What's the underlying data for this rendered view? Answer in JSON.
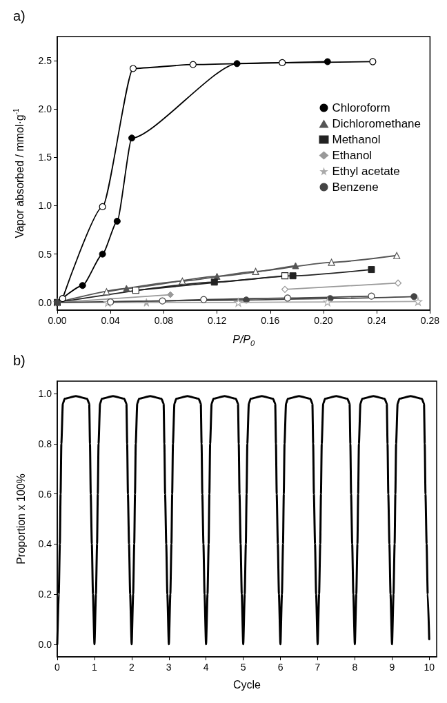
{
  "chart_data": [
    {
      "type": "line",
      "title": "a)",
      "xlabel": "P/P$_{0}$",
      "ylabel": "Vapor absorbed / mmol·g$^{-1}$",
      "xlim": [
        0,
        0.28
      ],
      "ylim": [
        -0.08,
        2.75
      ],
      "xticks": [
        {
          "value": 0,
          "label": "0.00"
        },
        {
          "value": 0.04,
          "label": "0.04"
        },
        {
          "value": 0.08,
          "label": "0.08"
        },
        {
          "value": 0.12,
          "label": "0.12"
        },
        {
          "value": 0.16,
          "label": "0.16"
        },
        {
          "value": 0.2,
          "label": "0.20"
        },
        {
          "value": 0.24,
          "label": "0.24"
        },
        {
          "value": 0.28,
          "label": "0.28"
        }
      ],
      "yticks": [
        {
          "value": 0,
          "label": "0.0"
        },
        {
          "value": 0.5,
          "label": "0.5"
        },
        {
          "value": 1,
          "label": "1.0"
        },
        {
          "value": 1.5,
          "label": "1.5"
        },
        {
          "value": 2,
          "label": "2.0"
        },
        {
          "value": 2.5,
          "label": "2.5"
        }
      ],
      "grid": false,
      "legend": "right",
      "series": [
        {
          "name": "Chloroform",
          "color": "#000000",
          "marker": "circle",
          "x": [
            0,
            0.019,
            0.034,
            0.045,
            0.056,
            0.135,
            0.203
          ],
          "values": [
            0,
            0.175,
            0.5,
            0.84,
            1.7,
            2.47,
            2.49
          ]
        },
        {
          "name": "Dichloromethane",
          "color": "#555555",
          "marker": "triangle",
          "x": [
            0,
            0.052,
            0.12,
            0.179
          ],
          "values": [
            0,
            0.145,
            0.27,
            0.38
          ]
        },
        {
          "name": "Methanol",
          "color": "#222222",
          "marker": "square",
          "x": [
            0,
            0.118,
            0.177,
            0.236
          ],
          "values": [
            0,
            0.21,
            0.275,
            0.34
          ]
        },
        {
          "name": "Ethanol",
          "color": "#999999",
          "marker": "diamond",
          "x": [
            0,
            0.085
          ],
          "values": [
            0,
            0.08
          ]
        },
        {
          "name": "Ethyl acetate",
          "color": "#aaaaaa",
          "marker": "star",
          "x": [
            0,
            0.067
          ],
          "values": [
            0,
            0
          ]
        },
        {
          "name": "Benzene",
          "color": "#444444",
          "marker": "circle",
          "x": [
            0,
            0.142,
            0.205,
            0.268
          ],
          "values": [
            0,
            0.025,
            0.04,
            0.06
          ]
        },
        {
          "color": "#000000",
          "marker": "circle",
          "x": [
            0.004,
            0.034,
            0.057,
            0.102,
            0.169,
            0.237
          ],
          "values": [
            0.04,
            0.99,
            2.42,
            2.46,
            2.48,
            2.49
          ]
        },
        {
          "color": "#555555",
          "marker": "triangle",
          "x": [
            0.037,
            0.094,
            0.149,
            0.206,
            0.255
          ],
          "values": [
            0.11,
            0.22,
            0.32,
            0.415,
            0.485
          ]
        },
        {
          "color": "#222222",
          "marker": "square",
          "x": [
            0.059,
            0.171
          ],
          "values": [
            0.125,
            0.275
          ]
        },
        {
          "color": "#999999",
          "marker": "diamond",
          "x": [
            0.171,
            0.256
          ],
          "values": [
            0.135,
            0.2
          ]
        },
        {
          "color": "#aaaaaa",
          "marker": "star",
          "x": [
            0.038,
            0.136,
            0.203,
            0.271
          ],
          "values": [
            0,
            0,
            0.005,
            0.01
          ]
        },
        {
          "color": "#444444",
          "marker": "circle",
          "x": [
            0.04,
            0.079,
            0.11,
            0.173,
            0.236
          ],
          "values": [
            0.005,
            0.015,
            0.03,
            0.045,
            0.065
          ]
        }
      ]
    },
    {
      "type": "line",
      "title": "b)",
      "xlabel": "Cycle",
      "ylabel": "Proportion x 100%",
      "xlim": [
        0,
        10.2
      ],
      "ylim": [
        -0.05,
        1.05
      ],
      "xticks": [
        0,
        1,
        2,
        3,
        4,
        5,
        6,
        7,
        8,
        9,
        10
      ],
      "yticks": [
        {
          "value": 0,
          "label": "0.0"
        },
        {
          "value": 0.2,
          "label": "0.2"
        },
        {
          "value": 0.4,
          "label": "0.4"
        },
        {
          "value": 0.6,
          "label": "0.6"
        },
        {
          "value": 0.8,
          "label": "0.8"
        },
        {
          "value": 1,
          "label": "1.0"
        }
      ],
      "grid": false,
      "legend": false,
      "marker": "none",
      "series": [
        {
          "color": "#000000",
          "x": [
            0,
            0.04,
            0.07,
            0.09,
            0.11,
            0.15,
            0.2,
            0.5,
            0.8,
            0.86,
            0.88,
            0.9,
            0.93,
            0.96,
            1,
            1.04,
            1.07,
            1.09,
            1.11,
            1.15,
            1.2,
            1.5,
            1.8,
            1.86,
            1.88,
            1.9,
            1.93,
            1.96,
            2,
            2.04,
            2.07,
            2.09,
            2.11,
            2.15,
            2.2,
            2.5,
            2.8,
            2.86,
            2.88,
            2.9,
            2.93,
            2.96,
            3,
            3.04,
            3.07,
            3.09,
            3.11,
            3.15,
            3.2,
            3.5,
            3.8,
            3.86,
            3.88,
            3.9,
            3.93,
            3.96,
            4,
            4.04,
            4.07,
            4.09,
            4.11,
            4.15,
            4.2,
            4.5,
            4.8,
            4.86,
            4.88,
            4.9,
            4.93,
            4.96,
            5,
            5.04,
            5.07,
            5.09,
            5.11,
            5.15,
            5.2,
            5.5,
            5.8,
            5.86,
            5.88,
            5.9,
            5.93,
            5.96,
            6,
            6.04,
            6.07,
            6.09,
            6.11,
            6.15,
            6.2,
            6.5,
            6.8,
            6.86,
            6.88,
            6.9,
            6.93,
            6.96,
            7,
            7.04,
            7.07,
            7.09,
            7.11,
            7.15,
            7.2,
            7.5,
            7.8,
            7.86,
            7.88,
            7.9,
            7.93,
            7.96,
            8,
            8.04,
            8.07,
            8.09,
            8.11,
            8.15,
            8.2,
            8.5,
            8.8,
            8.86,
            8.88,
            8.9,
            8.93,
            8.96,
            9,
            9.04,
            9.07,
            9.09,
            9.11,
            9.15,
            9.2,
            9.5,
            9.8,
            9.86,
            9.88,
            9.9,
            9.93,
            9.96,
            10
          ],
          "values": [
            0,
            0.2,
            0.4,
            0.6,
            0.8,
            0.96,
            0.98,
            0.99,
            0.98,
            0.96,
            0.8,
            0.6,
            0.4,
            0.2,
            0,
            0.2,
            0.4,
            0.6,
            0.8,
            0.96,
            0.98,
            0.99,
            0.98,
            0.96,
            0.8,
            0.6,
            0.4,
            0.2,
            0,
            0.2,
            0.4,
            0.6,
            0.8,
            0.96,
            0.98,
            0.99,
            0.98,
            0.96,
            0.8,
            0.6,
            0.4,
            0.2,
            0,
            0.2,
            0.4,
            0.6,
            0.8,
            0.96,
            0.98,
            0.99,
            0.98,
            0.96,
            0.8,
            0.6,
            0.4,
            0.2,
            0,
            0.2,
            0.4,
            0.6,
            0.8,
            0.96,
            0.98,
            0.99,
            0.98,
            0.96,
            0.8,
            0.6,
            0.4,
            0.2,
            0,
            0.2,
            0.4,
            0.6,
            0.8,
            0.96,
            0.98,
            0.99,
            0.98,
            0.96,
            0.8,
            0.6,
            0.4,
            0.2,
            0,
            0.2,
            0.4,
            0.6,
            0.8,
            0.96,
            0.98,
            0.99,
            0.98,
            0.96,
            0.8,
            0.6,
            0.4,
            0.2,
            0,
            0.2,
            0.4,
            0.6,
            0.8,
            0.96,
            0.98,
            0.99,
            0.98,
            0.96,
            0.8,
            0.6,
            0.4,
            0.2,
            0,
            0.2,
            0.4,
            0.6,
            0.8,
            0.96,
            0.98,
            0.99,
            0.98,
            0.96,
            0.8,
            0.6,
            0.4,
            0.2,
            0,
            0.2,
            0.4,
            0.6,
            0.8,
            0.96,
            0.98,
            0.99,
            0.98,
            0.96,
            0.8,
            0.6,
            0.4,
            0.2,
            0.02
          ]
        }
      ]
    }
  ]
}
